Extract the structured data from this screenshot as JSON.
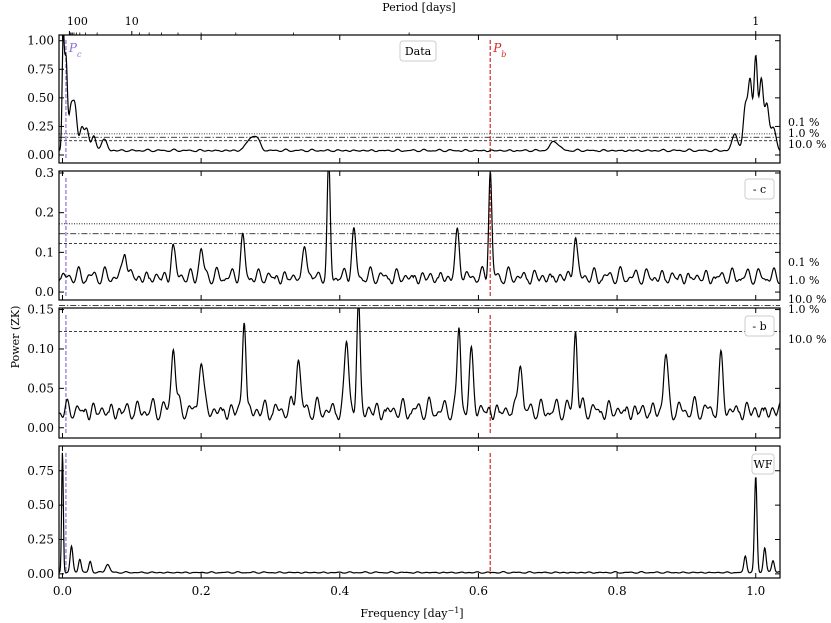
{
  "chart_data": {
    "type": "line",
    "top_axis": {
      "label": "Period [days]",
      "ticks": [
        {
          "period": 100,
          "label": "100"
        },
        {
          "period": 10,
          "label": "10"
        },
        {
          "period": 1,
          "label": "1"
        }
      ]
    },
    "xlabel": "Frequency [day$^{-1}$]",
    "xlabel_display": "Frequency [day",
    "xlabel_sup": "−1",
    "xlabel_end": "]",
    "ylabel": "Power (ZK)",
    "xlim": [
      -0.005,
      1.035
    ],
    "xticks": [
      0.0,
      0.2,
      0.4,
      0.6,
      0.8,
      1.0
    ],
    "xtick_labels": [
      "0.0",
      "0.2",
      "0.4",
      "0.6",
      "0.8",
      "1.0"
    ],
    "markers": [
      {
        "name": "P_c",
        "label": "P",
        "sub": "c",
        "frequency": 0.005,
        "color": "#8c6fd1"
      },
      {
        "name": "P_b",
        "label": "P",
        "sub": "b",
        "frequency": 0.617,
        "color": "#d62728"
      }
    ],
    "panels": [
      {
        "id": "data",
        "legend": "Data",
        "legend_position": "top-center",
        "ylim": [
          -0.07,
          1.05
        ],
        "yticks": [
          0.0,
          0.25,
          0.5,
          0.75,
          1.0
        ],
        "ytick_labels": [
          "0.00",
          "0.25",
          "0.50",
          "0.75",
          "1.00"
        ],
        "fap_levels": [
          {
            "label": "0.1 %",
            "value": 0.185,
            "style": "dotted"
          },
          {
            "label": "1.0 %",
            "value": 0.155,
            "style": "dashdot"
          },
          {
            "label": "10.0 %",
            "value": 0.125,
            "style": "dashed"
          }
        ],
        "series": {
          "baseline": 0.03,
          "noise": 0.022,
          "seed": 11,
          "peaks": [
            {
              "f": 0.001,
              "h": 0.93,
              "w": 0.0015
            },
            {
              "f": 0.005,
              "h": 0.8,
              "w": 0.002
            },
            {
              "f": 0.012,
              "h": 0.35,
              "w": 0.003
            },
            {
              "f": 0.018,
              "h": 0.37,
              "w": 0.003
            },
            {
              "f": 0.028,
              "h": 0.2,
              "w": 0.003
            },
            {
              "f": 0.035,
              "h": 0.18,
              "w": 0.003
            },
            {
              "f": 0.045,
              "h": 0.13,
              "w": 0.003
            },
            {
              "f": 0.06,
              "h": 0.1,
              "w": 0.004
            },
            {
              "f": 0.27,
              "h": 0.09,
              "w": 0.006
            },
            {
              "f": 0.28,
              "h": 0.1,
              "w": 0.005
            },
            {
              "f": 0.71,
              "h": 0.08,
              "w": 0.006
            },
            {
              "f": 0.97,
              "h": 0.15,
              "w": 0.004
            },
            {
              "f": 0.985,
              "h": 0.38,
              "w": 0.003
            },
            {
              "f": 0.992,
              "h": 0.6,
              "w": 0.003
            },
            {
              "f": 1.0,
              "h": 0.8,
              "w": 0.0025
            },
            {
              "f": 1.008,
              "h": 0.62,
              "w": 0.003
            },
            {
              "f": 1.016,
              "h": 0.38,
              "w": 0.003
            },
            {
              "f": 1.025,
              "h": 0.2,
              "w": 0.004
            }
          ]
        }
      },
      {
        "id": "minus-c",
        "legend": "- c",
        "legend_position": "top-right",
        "ylim": [
          -0.02,
          0.305
        ],
        "yticks": [
          0.0,
          0.1,
          0.2,
          0.3
        ],
        "ytick_labels": [
          "0.0",
          "0.1",
          "0.2",
          "0.3"
        ],
        "fap_levels": [
          {
            "label": "0.1 %",
            "value": 0.172,
            "style": "dotted"
          },
          {
            "label": "1.0 %",
            "value": 0.147,
            "style": "dashdot"
          },
          {
            "label": "10.0 %",
            "value": 0.122,
            "style": "dashed"
          }
        ],
        "series": {
          "baseline": 0.02,
          "noise": 0.045,
          "seed": 23,
          "peaks": [
            {
              "f": 0.09,
              "h": 0.07,
              "w": 0.003
            },
            {
              "f": 0.16,
              "h": 0.08,
              "w": 0.003
            },
            {
              "f": 0.2,
              "h": 0.07,
              "w": 0.003
            },
            {
              "f": 0.26,
              "h": 0.09,
              "w": 0.003
            },
            {
              "f": 0.35,
              "h": 0.08,
              "w": 0.003
            },
            {
              "f": 0.384,
              "h": 0.28,
              "w": 0.0022
            },
            {
              "f": 0.42,
              "h": 0.11,
              "w": 0.003
            },
            {
              "f": 0.57,
              "h": 0.11,
              "w": 0.003
            },
            {
              "f": 0.617,
              "h": 0.27,
              "w": 0.0022
            },
            {
              "f": 0.74,
              "h": 0.1,
              "w": 0.003
            }
          ]
        }
      },
      {
        "id": "minus-b",
        "legend": "- b",
        "legend_position": "top-right",
        "ylim": [
          -0.013,
          0.152
        ],
        "yticks": [
          0.0,
          0.05,
          0.1,
          0.15
        ],
        "ytick_labels": [
          "0.00",
          "0.05",
          "0.10",
          "0.15"
        ],
        "fap_levels": [
          {
            "label": "1.0 %",
            "value": 0.155,
            "style": "dashdot"
          },
          {
            "label": "10.0 %",
            "value": 0.122,
            "style": "dashed"
          }
        ],
        "series": {
          "baseline": 0.01,
          "noise": 0.03,
          "seed": 37,
          "peaks": [
            {
              "f": 0.16,
              "h": 0.085,
              "w": 0.003
            },
            {
              "f": 0.2,
              "h": 0.07,
              "w": 0.003
            },
            {
              "f": 0.262,
              "h": 0.12,
              "w": 0.0025
            },
            {
              "f": 0.34,
              "h": 0.07,
              "w": 0.003
            },
            {
              "f": 0.41,
              "h": 0.09,
              "w": 0.003
            },
            {
              "f": 0.427,
              "h": 0.135,
              "w": 0.0025
            },
            {
              "f": 0.572,
              "h": 0.107,
              "w": 0.0025
            },
            {
              "f": 0.59,
              "h": 0.07,
              "w": 0.003
            },
            {
              "f": 0.66,
              "h": 0.065,
              "w": 0.003
            },
            {
              "f": 0.74,
              "h": 0.105,
              "w": 0.0025
            },
            {
              "f": 0.87,
              "h": 0.07,
              "w": 0.003
            },
            {
              "f": 0.95,
              "h": 0.06,
              "w": 0.003
            }
          ]
        }
      },
      {
        "id": "window",
        "legend": "WF",
        "legend_position": "top-right",
        "ylim": [
          -0.03,
          0.93
        ],
        "yticks": [
          0.0,
          0.25,
          0.5,
          0.75
        ],
        "ytick_labels": [
          "0.00",
          "0.25",
          "0.50",
          "0.75"
        ],
        "fap_levels": [],
        "series": {
          "baseline": 0.005,
          "noise": 0.012,
          "seed": 51,
          "peaks": [
            {
              "f": 0.0,
              "h": 0.88,
              "w": 0.0012
            },
            {
              "f": 0.013,
              "h": 0.19,
              "w": 0.002
            },
            {
              "f": 0.025,
              "h": 0.1,
              "w": 0.002
            },
            {
              "f": 0.04,
              "h": 0.08,
              "w": 0.002
            },
            {
              "f": 0.065,
              "h": 0.06,
              "w": 0.003
            },
            {
              "f": 0.985,
              "h": 0.12,
              "w": 0.002
            },
            {
              "f": 1.0,
              "h": 0.7,
              "w": 0.0018
            },
            {
              "f": 1.013,
              "h": 0.18,
              "w": 0.002
            },
            {
              "f": 1.025,
              "h": 0.09,
              "w": 0.002
            }
          ]
        }
      }
    ]
  }
}
